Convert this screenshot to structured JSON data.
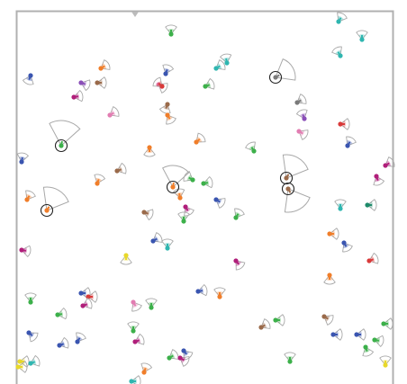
{
  "scene": {
    "kind": "multi-agent swarm simulation",
    "background_color": "#ffffff",
    "border_color": "#b0b0b0",
    "fov_stroke_color": "#a8a8a8",
    "highlight_ring_color": "#222222"
  },
  "palette": {
    "teal": "#2fb6b0",
    "blue": "#3a55b0",
    "purple": "#8a4fb8",
    "orange": "#f07e2a",
    "brown": "#9a6a4a",
    "pink": "#e27db2",
    "green": "#3cb04a",
    "red": "#d93a3a",
    "magenta": "#b01e7a",
    "gray": "#7a7a7a",
    "yellow": "#e8d82a",
    "dark_green": "#1e8a6a"
  },
  "agents": [
    {
      "color": "teal"
    },
    {
      "color": "teal"
    },
    {
      "color": "teal"
    },
    {
      "color": "green"
    },
    {
      "color": "teal"
    },
    {
      "color": "blue"
    },
    {
      "color": "orange"
    },
    {
      "color": "brown"
    },
    {
      "color": "purple"
    },
    {
      "color": "magenta"
    },
    {
      "color": "blue"
    },
    {
      "color": "pink"
    },
    {
      "color": "red"
    },
    {
      "color": "green"
    },
    {
      "color": "teal"
    },
    {
      "color": "brown"
    },
    {
      "color": "orange"
    },
    {
      "color": "gray"
    },
    {
      "color": "purple"
    },
    {
      "color": "red"
    },
    {
      "color": "pink"
    },
    {
      "color": "pink"
    },
    {
      "color": "blue"
    },
    {
      "color": "blue"
    },
    {
      "color": "orange"
    },
    {
      "color": "green"
    },
    {
      "color": "brown"
    },
    {
      "color": "orange"
    },
    {
      "color": "orange"
    },
    {
      "color": "orange"
    },
    {
      "color": "green"
    },
    {
      "color": "blue"
    },
    {
      "color": "magenta"
    },
    {
      "color": "green"
    },
    {
      "color": "magenta"
    },
    {
      "color": "teal"
    },
    {
      "color": "dark_green"
    },
    {
      "color": "green"
    },
    {
      "color": "brown"
    },
    {
      "color": "blue"
    },
    {
      "color": "teal"
    },
    {
      "color": "orange"
    },
    {
      "color": "yellow"
    },
    {
      "color": "orange"
    },
    {
      "color": "green"
    },
    {
      "color": "blue"
    },
    {
      "color": "magenta"
    },
    {
      "color": "red"
    },
    {
      "color": "magenta"
    },
    {
      "color": "orange"
    },
    {
      "color": "blue"
    },
    {
      "color": "red"
    },
    {
      "color": "green"
    },
    {
      "color": "green"
    },
    {
      "color": "magenta"
    },
    {
      "color": "green"
    },
    {
      "color": "blue"
    },
    {
      "color": "orange"
    },
    {
      "color": "pink"
    },
    {
      "color": "green"
    },
    {
      "color": "brown"
    },
    {
      "color": "blue"
    },
    {
      "color": "blue"
    },
    {
      "color": "magenta"
    },
    {
      "color": "green"
    },
    {
      "color": "brown"
    },
    {
      "color": "blue"
    },
    {
      "color": "green"
    },
    {
      "color": "green"
    },
    {
      "color": "blue"
    },
    {
      "color": "yellow"
    },
    {
      "color": "green"
    },
    {
      "color": "blue"
    },
    {
      "color": "green"
    },
    {
      "color": "blue"
    },
    {
      "color": "magenta"
    },
    {
      "color": "orange"
    },
    {
      "color": "teal"
    },
    {
      "color": "yellow"
    },
    {
      "color": "yellow"
    },
    {
      "color": "teal"
    },
    {
      "color": "magenta"
    },
    {
      "color": "green"
    }
  ],
  "highlighted_agents": [
    {
      "color": "green"
    },
    {
      "color": "orange"
    },
    {
      "color": "orange"
    },
    {
      "color": "brown"
    },
    {
      "color": "brown"
    },
    {
      "color": "gray"
    }
  ]
}
